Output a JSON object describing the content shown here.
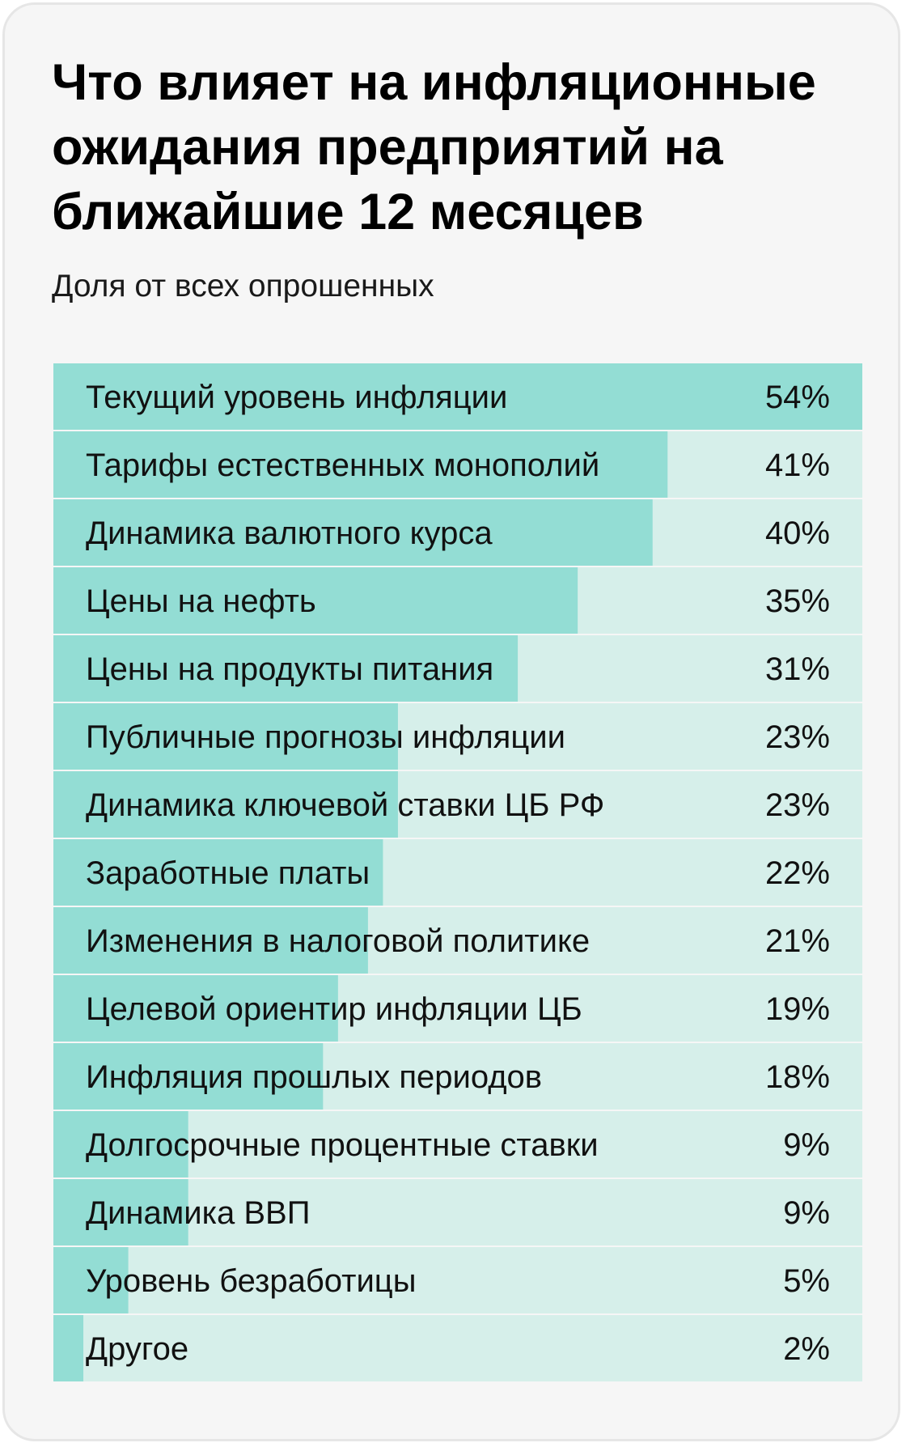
{
  "title": "Что влияет на инфляционные ожидания предприятий на ближайшие 12 месяцев",
  "subtitle": "Доля от всех опрошенных",
  "colors": {
    "bar_fill": "#93ddd4",
    "track_fill": "#d6efea",
    "card_background": "#f6f6f6"
  },
  "chart_data": {
    "type": "bar",
    "orientation": "horizontal",
    "unit": "%",
    "xlim": [
      0,
      54
    ],
    "grid": false,
    "legend": "none",
    "categories": [
      "Текущий уровень инфляции",
      "Тарифы естественных монополий",
      "Динамика валютного курса",
      "Цены на нефть",
      "Цены на продукты питания",
      "Публичные прогнозы инфляции",
      "Динамика ключевой ставки ЦБ РФ",
      "Заработные платы",
      "Изменения в налоговой политике",
      "Целевой ориентир инфляции ЦБ",
      "Инфляция прошлых периодов",
      "Долгосрочные процентные ставки",
      "Динамика ВВП",
      "Уровень безработицы",
      "Другое"
    ],
    "values": [
      54,
      41,
      40,
      35,
      31,
      23,
      23,
      22,
      21,
      19,
      18,
      9,
      9,
      5,
      2
    ],
    "value_labels": [
      "54%",
      "41%",
      "40%",
      "35%",
      "31%",
      "23%",
      "23%",
      "22%",
      "21%",
      "19%",
      "18%",
      "9%",
      "9%",
      "5%",
      "2%"
    ]
  }
}
